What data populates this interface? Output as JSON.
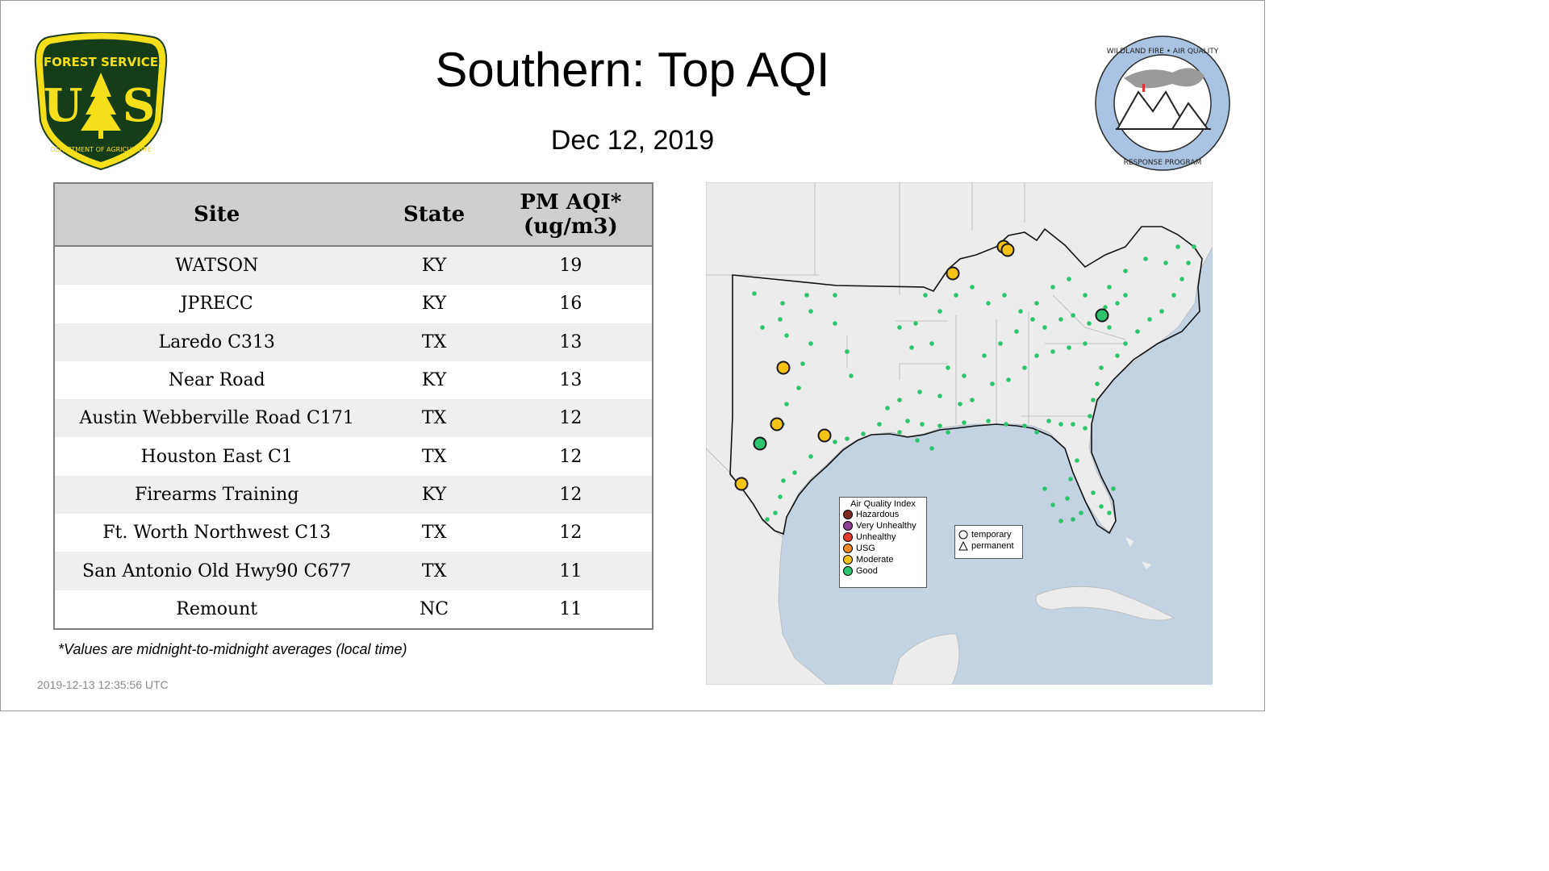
{
  "title": "Southern: Top AQI",
  "date": "Dec 12, 2019",
  "logos": {
    "forest_service": {
      "top_text": "FOREST SERVICE",
      "letters": "U S",
      "bottom_text": "DEPARTMENT OF AGRICULTURE"
    },
    "wildland_fire": {
      "ring_text_top": "WILDLAND FIRE • AIR QUALITY",
      "ring_text_bottom": "RESPONSE PROGRAM"
    }
  },
  "table": {
    "headers": {
      "site": "Site",
      "state": "State",
      "aqi_line1": "PM AQI*",
      "aqi_line2": "(ug/m3)"
    },
    "rows": [
      {
        "site": "WATSON",
        "state": "KY",
        "aqi": "19"
      },
      {
        "site": "JPRECC",
        "state": "KY",
        "aqi": "16"
      },
      {
        "site": "Laredo C313",
        "state": "TX",
        "aqi": "13"
      },
      {
        "site": "Near Road",
        "state": "KY",
        "aqi": "13"
      },
      {
        "site": "Austin Webberville Road C171",
        "state": "TX",
        "aqi": "12"
      },
      {
        "site": "Houston East C1",
        "state": "TX",
        "aqi": "12"
      },
      {
        "site": "Firearms Training",
        "state": "KY",
        "aqi": "12"
      },
      {
        "site": "Ft. Worth Northwest C13",
        "state": "TX",
        "aqi": "12"
      },
      {
        "site": "San Antonio Old Hwy90 C677",
        "state": "TX",
        "aqi": "11"
      },
      {
        "site": "Remount",
        "state": "NC",
        "aqi": "11"
      }
    ]
  },
  "footnote": "*Values are midnight-to-midnight averages (local time)",
  "timestamp": "2019-12-13 12:35:56 UTC",
  "legend": {
    "title": "Air Quality Index",
    "items": [
      {
        "label": "Hazardous",
        "color": "#7e2a22"
      },
      {
        "label": "Very Unhealthy",
        "color": "#8f3f97"
      },
      {
        "label": "Unhealthy",
        "color": "#e5382c"
      },
      {
        "label": "USG",
        "color": "#f08a24"
      },
      {
        "label": "Moderate",
        "color": "#f5c318"
      },
      {
        "label": "Good",
        "color": "#2ec46e"
      }
    ]
  },
  "monitor_legend": {
    "temporary": "temporary",
    "permanent": "permanent"
  },
  "colors": {
    "land": "#ececec",
    "water": "#c3d3e2",
    "good": "#2ec46e",
    "moderate": "#f5c318",
    "header_bg": "#cfcfcf"
  }
}
